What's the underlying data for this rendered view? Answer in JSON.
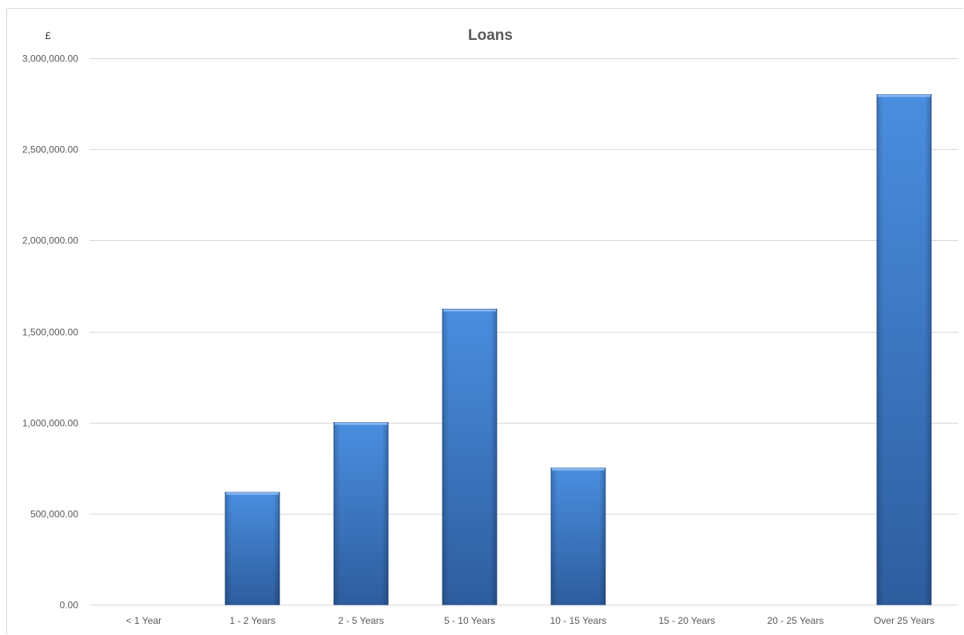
{
  "chart_data": {
    "type": "bar",
    "title": "Loans",
    "currency_label": "£",
    "xlabel": "",
    "ylabel": "",
    "categories": [
      "< 1 Year",
      "1 - 2 Years",
      "2 - 5 Years",
      "5 - 10 Years",
      "10 - 15 Years",
      "15 - 20 Years",
      "20 - 25 Years",
      "Over 25 Years"
    ],
    "values": [
      0,
      617000,
      1000000,
      1623000,
      750000,
      0,
      0,
      2800000
    ],
    "ylim": [
      0,
      3000000
    ],
    "yticks": [
      0,
      500000,
      1000000,
      1500000,
      2000000,
      2500000,
      3000000
    ],
    "ytick_labels": [
      "0.00",
      "500,000.00",
      "1,000,000.00",
      "1,500,000.00",
      "2,000,000.00",
      "2,500,000.00",
      "3,000,000.00"
    ],
    "grid": true,
    "legend": "none",
    "colors": {
      "bar_top": "#4a8ee0",
      "bar_bottom": "#2e5d9e",
      "bar_edge": "#1f4e8c",
      "grid": "#d9d9d9",
      "text": "#595959"
    }
  }
}
